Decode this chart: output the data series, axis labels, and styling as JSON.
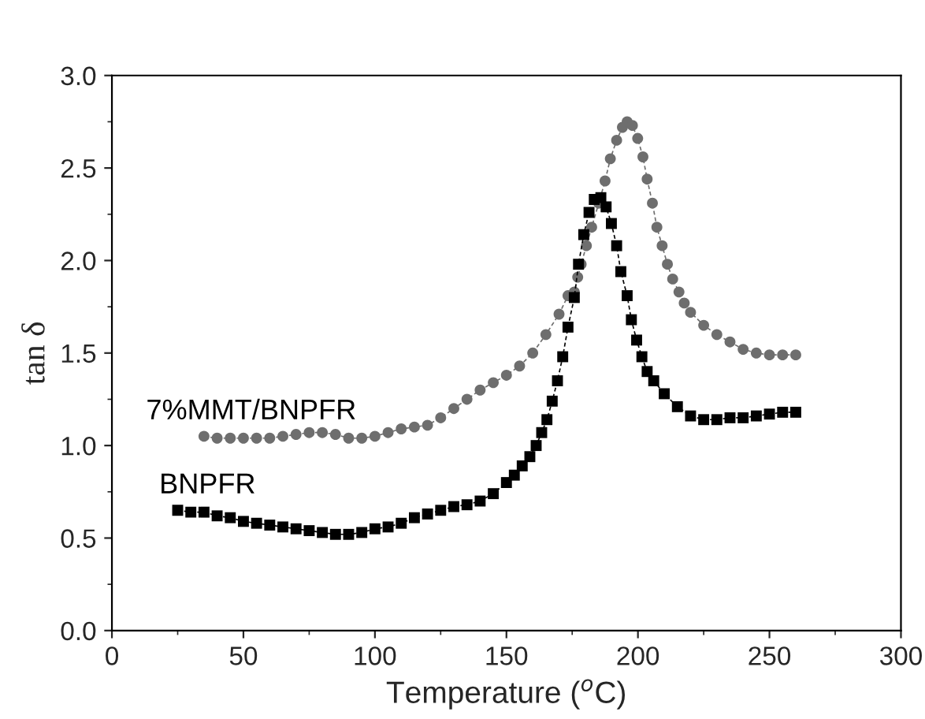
{
  "chart_data": {
    "type": "line",
    "line_style": "dashed",
    "xlabel": "Temperature ($^{o}$C)",
    "ylabel": "tan δ",
    "xlim": [
      0,
      300
    ],
    "ylim": [
      0,
      3.0
    ],
    "xticks": [
      0,
      50,
      100,
      150,
      200,
      250,
      300
    ],
    "yticks": [
      {
        "value": 0,
        "label": "0.0"
      },
      {
        "value": 0.5,
        "label": "0.5"
      },
      {
        "value": 1.0,
        "label": "1.0"
      },
      {
        "value": 1.5,
        "label": "1.5"
      },
      {
        "value": 2.0,
        "label": "2.0"
      },
      {
        "value": 2.5,
        "label": "2.5"
      },
      {
        "value": 3.0,
        "label": "3.0"
      }
    ],
    "grid": false,
    "legend": false,
    "series": [
      {
        "name": "7%MMT/BNPFR",
        "color": "#6e6e6e",
        "marker": "circle",
        "x": [
          35,
          40,
          45,
          50,
          55,
          60,
          65,
          70,
          75,
          80,
          85,
          90,
          95,
          100,
          105,
          110,
          115,
          120,
          125,
          130,
          135,
          140,
          145,
          150,
          155,
          160,
          165,
          170,
          173.4,
          175.8,
          177.1,
          178.4,
          180.4,
          182.4,
          185.1,
          187.5,
          189.5,
          191.9,
          194.1,
          195.9,
          197.9,
          199.9,
          201.9,
          203.5,
          205.5,
          207.2,
          209.2,
          211.2,
          213.2,
          215.6,
          217.6,
          220,
          225,
          230,
          235,
          240,
          245,
          250,
          255,
          260
        ],
        "values": [
          1.05,
          1.04,
          1.04,
          1.04,
          1.04,
          1.04,
          1.05,
          1.06,
          1.07,
          1.07,
          1.06,
          1.04,
          1.04,
          1.05,
          1.07,
          1.09,
          1.1,
          1.11,
          1.15,
          1.2,
          1.25,
          1.3,
          1.34,
          1.38,
          1.43,
          1.5,
          1.6,
          1.71,
          1.81,
          1.83,
          1.91,
          1.98,
          2.08,
          2.18,
          2.31,
          2.43,
          2.55,
          2.65,
          2.72,
          2.75,
          2.73,
          2.66,
          2.56,
          2.44,
          2.31,
          2.18,
          2.08,
          1.98,
          1.9,
          1.83,
          1.77,
          1.72,
          1.65,
          1.6,
          1.56,
          1.52,
          1.5,
          1.49,
          1.49,
          1.49
        ]
      },
      {
        "name": "BNPFR",
        "color": "#000000",
        "marker": "square",
        "x": [
          25,
          30,
          35,
          40,
          45,
          50,
          55,
          60,
          65,
          70,
          75,
          80,
          85,
          90,
          95,
          100,
          105,
          110,
          115,
          120,
          125,
          130,
          135,
          140,
          145,
          150,
          153,
          156,
          158.9,
          161.3,
          163.4,
          165.4,
          167.4,
          169.4,
          171.4,
          173.4,
          175.8,
          177.4,
          179.4,
          181.4,
          183.4,
          185.9,
          187.9,
          189.9,
          191.9,
          193.5,
          195.9,
          197.5,
          199.5,
          201.5,
          203.5,
          206,
          210,
          215,
          220,
          225,
          230,
          235,
          240,
          245,
          250,
          255,
          260
        ],
        "values": [
          0.65,
          0.64,
          0.64,
          0.62,
          0.61,
          0.59,
          0.58,
          0.57,
          0.56,
          0.55,
          0.54,
          0.53,
          0.52,
          0.52,
          0.53,
          0.55,
          0.56,
          0.58,
          0.61,
          0.63,
          0.65,
          0.67,
          0.68,
          0.7,
          0.74,
          0.8,
          0.84,
          0.89,
          0.94,
          1.0,
          1.07,
          1.14,
          1.24,
          1.35,
          1.48,
          1.64,
          1.8,
          1.98,
          2.14,
          2.26,
          2.33,
          2.34,
          2.29,
          2.2,
          2.08,
          1.94,
          1.81,
          1.68,
          1.57,
          1.48,
          1.4,
          1.35,
          1.28,
          1.21,
          1.16,
          1.14,
          1.14,
          1.15,
          1.15,
          1.16,
          1.17,
          1.18,
          1.18
        ]
      }
    ]
  }
}
